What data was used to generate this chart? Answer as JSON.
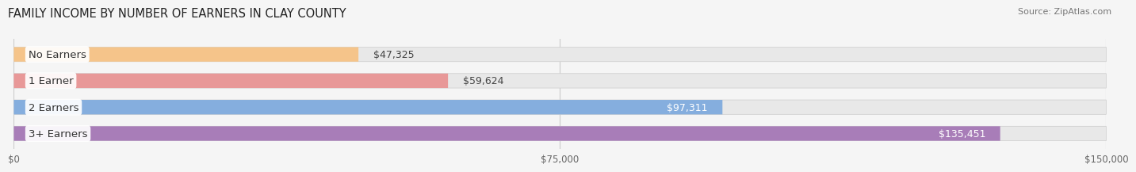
{
  "title": "FAMILY INCOME BY NUMBER OF EARNERS IN CLAY COUNTY",
  "source": "Source: ZipAtlas.com",
  "categories": [
    "No Earners",
    "1 Earner",
    "2 Earners",
    "3+ Earners"
  ],
  "values": [
    47325,
    59624,
    97311,
    135451
  ],
  "bar_colors": [
    "#f5c48a",
    "#e89898",
    "#85aede",
    "#a87db8"
  ],
  "value_colors": [
    "#555555",
    "#555555",
    "#ffffff",
    "#ffffff"
  ],
  "background_color": "#f5f5f5",
  "bar_bg_color": "#e2e2e2",
  "xlim": [
    0,
    150000
  ],
  "xticks": [
    0,
    75000,
    150000
  ],
  "xtick_labels": [
    "$0",
    "$75,000",
    "$150,000"
  ],
  "title_fontsize": 10.5,
  "source_fontsize": 8,
  "label_fontsize": 9.5,
  "value_fontsize": 9
}
